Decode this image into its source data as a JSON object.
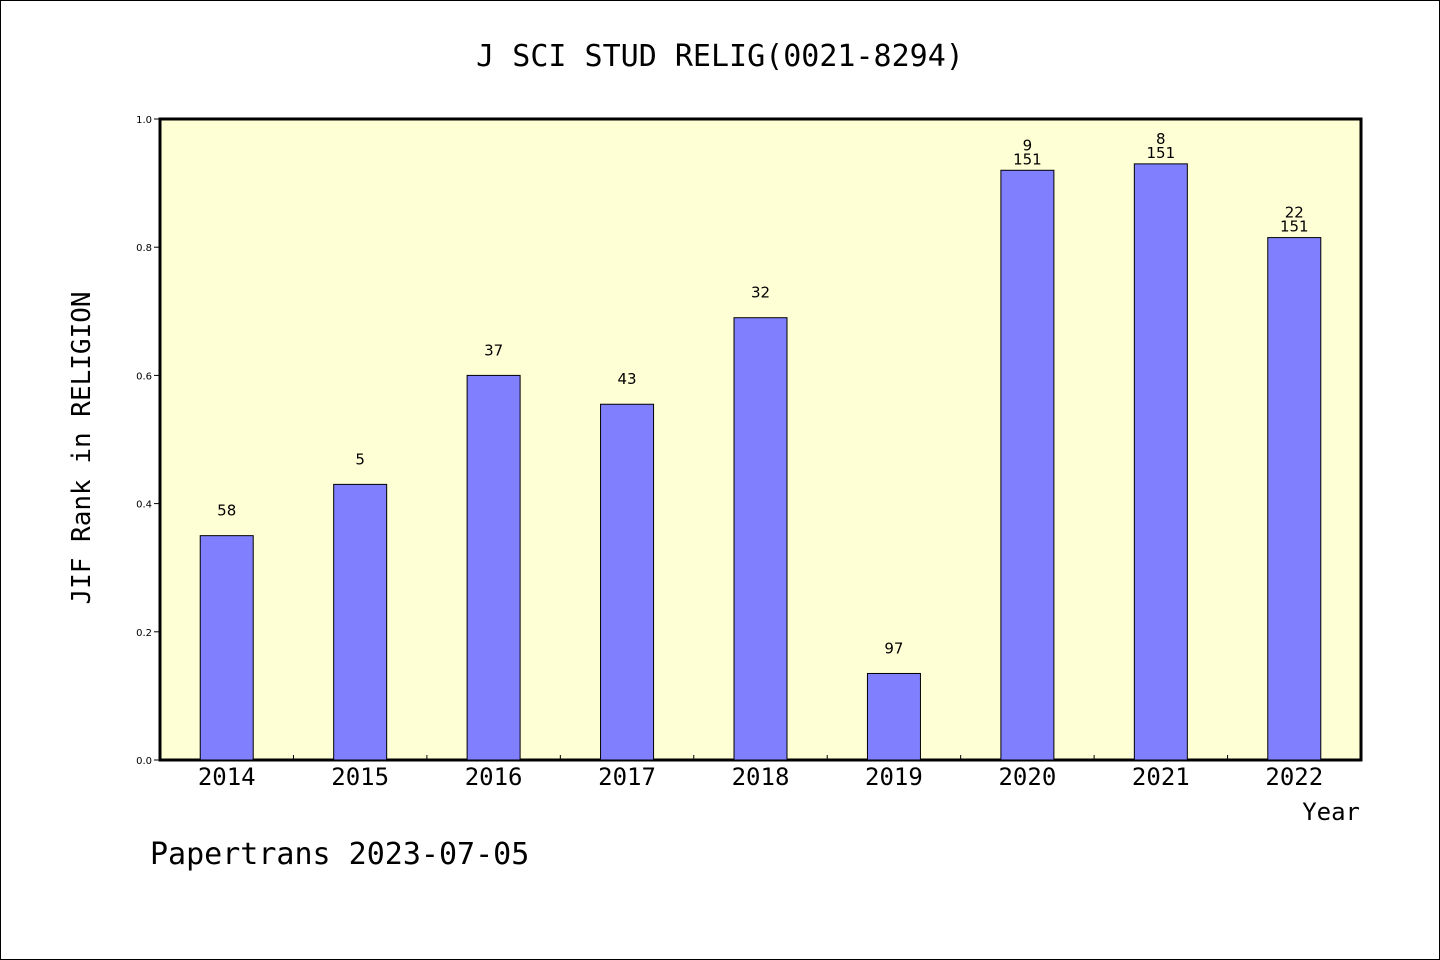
{
  "chart_data": {
    "type": "bar",
    "title": "J SCI STUD RELIG(0021-8294)",
    "xlabel": "Year",
    "ylabel": "JIF Rank in RELIGION",
    "ylim": [
      0,
      1.0
    ],
    "yticks": [
      "0.0",
      "0.2",
      "0.4",
      "0.6",
      "0.8",
      "1.0"
    ],
    "categories": [
      "2014",
      "2015",
      "2016",
      "2017",
      "2018",
      "2019",
      "2020",
      "2021",
      "2022"
    ],
    "values": [
      0.35,
      0.43,
      0.6,
      0.555,
      0.69,
      0.135,
      0.92,
      0.93,
      0.815
    ],
    "labels": [
      {
        "rank": "58",
        "total": ""
      },
      {
        "rank": "5",
        "total": ""
      },
      {
        "rank": "37",
        "total": ""
      },
      {
        "rank": "43",
        "total": ""
      },
      {
        "rank": "32",
        "total": ""
      },
      {
        "rank": "97",
        "total": ""
      },
      {
        "rank": "9",
        "total": "151"
      },
      {
        "rank": "8",
        "total": "151"
      },
      {
        "rank": "22",
        "total": "151"
      }
    ],
    "bar_color": "#8080ff",
    "plot_background": "#ffffd6",
    "grid": false,
    "legend": "none"
  },
  "footer": "Papertrans 2023-07-05"
}
